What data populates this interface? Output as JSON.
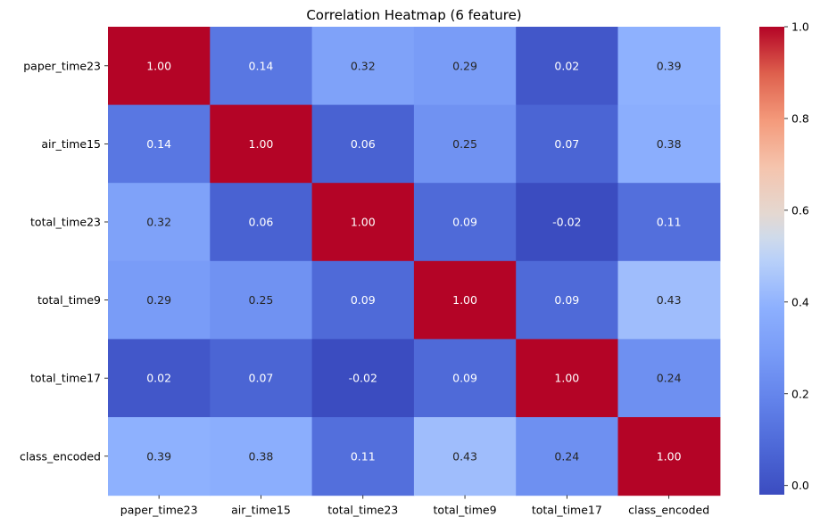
{
  "chart_data": {
    "type": "heatmap",
    "title": "Correlation Heatmap (6 feature)",
    "xlabel": "",
    "ylabel": "",
    "x_labels": [
      "paper_time23",
      "air_time15",
      "total_time23",
      "total_time9",
      "total_time17",
      "class_encoded"
    ],
    "y_labels": [
      "paper_time23",
      "air_time15",
      "total_time23",
      "total_time9",
      "total_time17",
      "class_encoded"
    ],
    "values": [
      [
        1.0,
        0.14,
        0.32,
        0.29,
        0.02,
        0.39
      ],
      [
        0.14,
        1.0,
        0.06,
        0.25,
        0.07,
        0.38
      ],
      [
        0.32,
        0.06,
        1.0,
        0.09,
        -0.02,
        0.11
      ],
      [
        0.29,
        0.25,
        0.09,
        1.0,
        0.09,
        0.43
      ],
      [
        0.02,
        0.07,
        -0.02,
        0.09,
        1.0,
        0.24
      ],
      [
        0.39,
        0.38,
        0.11,
        0.43,
        0.24,
        1.0
      ]
    ],
    "annotations_format": "2 decimals",
    "colormap": "coolwarm",
    "vmin": -0.02,
    "vmax": 1.0,
    "colorbar_ticks": [
      0.0,
      0.2,
      0.4,
      0.6,
      0.8,
      1.0
    ],
    "colorbar_tick_labels": [
      "0.0",
      "0.2",
      "0.4",
      "0.6",
      "0.8",
      "1.0"
    ],
    "grid": false,
    "legend": "colorbar-right"
  }
}
